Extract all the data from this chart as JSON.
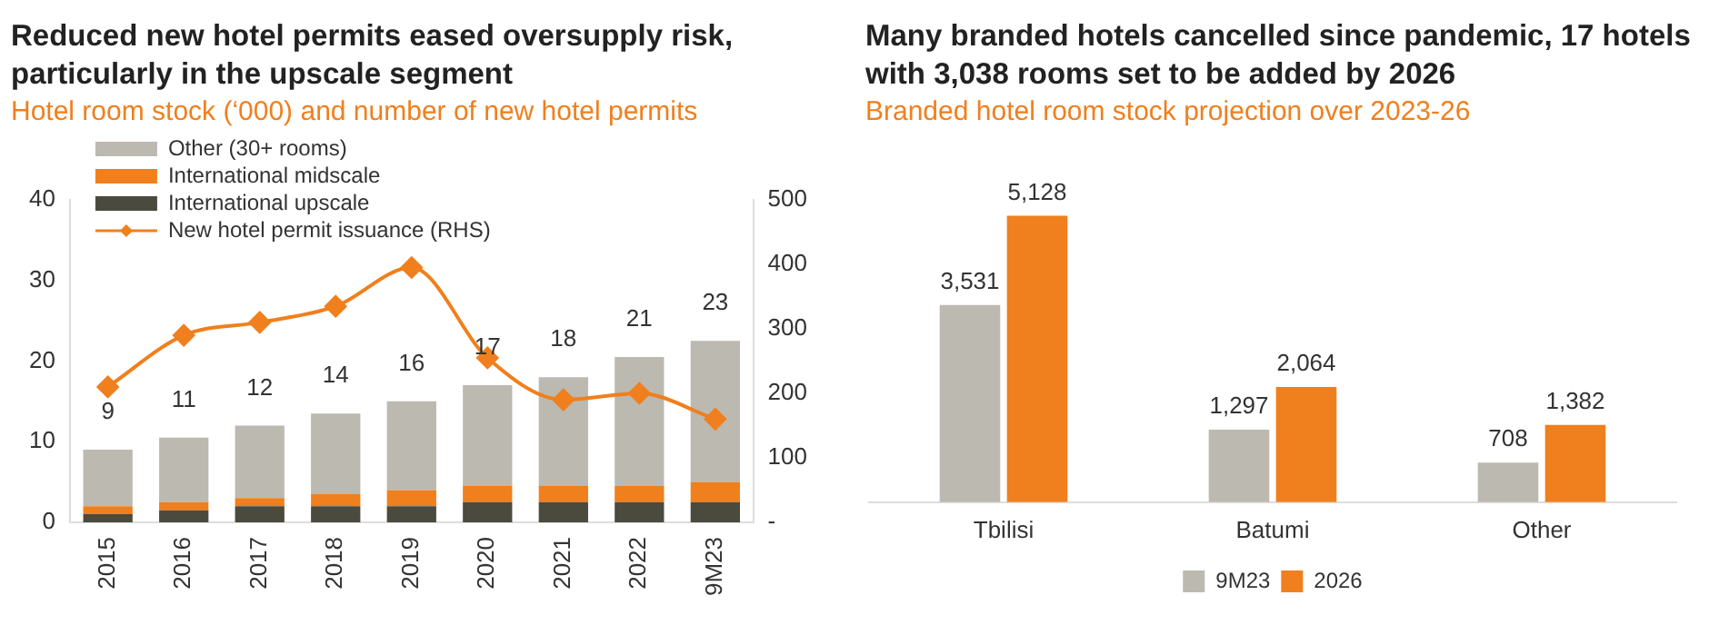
{
  "chart_data": [
    {
      "type": "bar",
      "title": "Reduced new hotel permits eased oversupply risk, particularly in the upscale segment",
      "subtitle": "Hotel room stock (‘000) and number of new hotel permits",
      "categories": [
        "2015",
        "2016",
        "2017",
        "2018",
        "2019",
        "2020",
        "2021",
        "2022",
        "9M23"
      ],
      "stacked": true,
      "series": [
        {
          "name": "International upscale",
          "color": "#4b4a3f",
          "values": [
            1,
            1.5,
            2,
            2,
            2,
            2.5,
            2.5,
            2.5,
            2.5
          ]
        },
        {
          "name": "International midscale",
          "color": "#f07f1d",
          "values": [
            1,
            1,
            1,
            1.5,
            2,
            2,
            2,
            2,
            2.5
          ]
        },
        {
          "name": "Other (30+ rooms)",
          "color": "#bcb9b0",
          "values": [
            7,
            8,
            9,
            10,
            11,
            12.5,
            13.5,
            16,
            17.5
          ]
        },
        {
          "name": "New hotel permit issuance (RHS)",
          "type": "line",
          "axis": "y2",
          "color": "#f07f1d",
          "values": [
            210,
            290,
            310,
            335,
            395,
            255,
            190,
            200,
            160
          ]
        }
      ],
      "totals": [
        "9",
        "11",
        "12",
        "14",
        "16",
        "17",
        "18",
        "21",
        "23"
      ],
      "ylim": [
        0,
        40
      ],
      "yticks": [
        0,
        10,
        20,
        30,
        40
      ],
      "y2lim": [
        0,
        500
      ],
      "y2ticks": [
        {
          "value": 0,
          "label": "-"
        },
        100,
        200,
        300,
        400,
        500
      ],
      "grid": false,
      "legend": "top left",
      "marker": "diamond"
    },
    {
      "type": "bar",
      "title": "Many branded hotels cancelled since pandemic, 17 hotels with 3,038 rooms set to be added by 2026",
      "subtitle": "Branded hotel room stock projection over 2023-26",
      "categories": [
        "Tbilisi",
        "Batumi",
        "Other"
      ],
      "series": [
        {
          "name": "9M23",
          "color": "#bcb9b0",
          "values": [
            3531,
            1297,
            708
          ],
          "value_labels": [
            "3,531",
            "1,297",
            "708"
          ]
        },
        {
          "name": "2026",
          "color": "#f07f1d",
          "values": [
            5128,
            2064,
            1382
          ],
          "value_labels": [
            "5,128",
            "2,064",
            "1,382"
          ]
        }
      ],
      "grid": false,
      "legend": "bottom",
      "tick_labels": "x"
    }
  ]
}
